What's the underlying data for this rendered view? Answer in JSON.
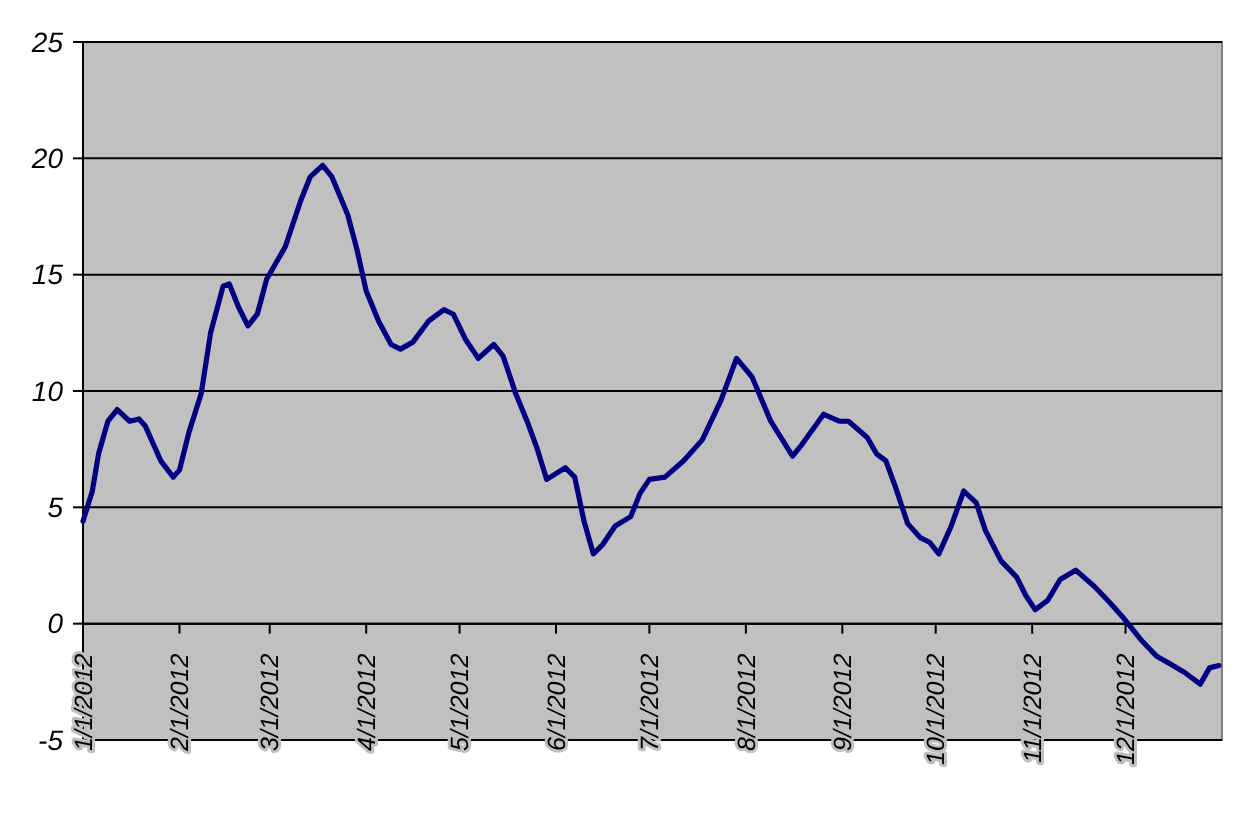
{
  "chart_data": {
    "type": "line",
    "grid": "y",
    "marker": "none",
    "line_style": "solid",
    "xlim": [
      "2012-01-01",
      "2013-01-01"
    ],
    "xticks": [
      {
        "value": "2012-01-01",
        "label": "1/1/2012"
      },
      {
        "value": "2012-02-01",
        "label": "2/1/2012"
      },
      {
        "value": "2012-03-01",
        "label": "3/1/2012"
      },
      {
        "value": "2012-04-01",
        "label": "4/1/2012"
      },
      {
        "value": "2012-05-01",
        "label": "5/1/2012"
      },
      {
        "value": "2012-06-01",
        "label": "6/1/2012"
      },
      {
        "value": "2012-07-01",
        "label": "7/1/2012"
      },
      {
        "value": "2012-08-01",
        "label": "8/1/2012"
      },
      {
        "value": "2012-09-01",
        "label": "9/1/2012"
      },
      {
        "value": "2012-10-01",
        "label": "10/1/2012"
      },
      {
        "value": "2012-11-01",
        "label": "11/1/2012"
      },
      {
        "value": "2012-12-01",
        "label": "12/1/2012"
      }
    ],
    "ylim": [
      -5,
      25
    ],
    "yticks": [
      -5,
      0,
      5,
      10,
      15,
      20,
      25
    ],
    "x": [
      "2012-01-01",
      "2012-01-04",
      "2012-01-06",
      "2012-01-09",
      "2012-01-12",
      "2012-01-16",
      "2012-01-19",
      "2012-01-21",
      "2012-01-26",
      "2012-01-30",
      "2012-02-01",
      "2012-02-04",
      "2012-02-08",
      "2012-02-11",
      "2012-02-15",
      "2012-02-17",
      "2012-02-20",
      "2012-02-23",
      "2012-02-26",
      "2012-02-29",
      "2012-03-03",
      "2012-03-06",
      "2012-03-11",
      "2012-03-14",
      "2012-03-18",
      "2012-03-21",
      "2012-03-26",
      "2012-03-29",
      "2012-04-01",
      "2012-04-05",
      "2012-04-09",
      "2012-04-12",
      "2012-04-16",
      "2012-04-21",
      "2012-04-26",
      "2012-04-29",
      "2012-05-03",
      "2012-05-07",
      "2012-05-12",
      "2012-05-15",
      "2012-05-19",
      "2012-05-23",
      "2012-05-26",
      "2012-05-29",
      "2012-06-04",
      "2012-06-07",
      "2012-06-10",
      "2012-06-13",
      "2012-06-16",
      "2012-06-20",
      "2012-06-25",
      "2012-06-28",
      "2012-07-01",
      "2012-07-06",
      "2012-07-12",
      "2012-07-18",
      "2012-07-24",
      "2012-07-29",
      "2012-08-03",
      "2012-08-09",
      "2012-08-16",
      "2012-08-19",
      "2012-08-26",
      "2012-08-31",
      "2012-09-03",
      "2012-09-09",
      "2012-09-12",
      "2012-09-15",
      "2012-09-18",
      "2012-09-22",
      "2012-09-26",
      "2012-09-29",
      "2012-10-02",
      "2012-10-06",
      "2012-10-10",
      "2012-10-14",
      "2012-10-17",
      "2012-10-22",
      "2012-10-27",
      "2012-10-30",
      "2012-11-02",
      "2012-11-06",
      "2012-11-10",
      "2012-11-15",
      "2012-11-21",
      "2012-11-26",
      "2012-11-30",
      "2012-12-06",
      "2012-12-11",
      "2012-12-15",
      "2012-12-20",
      "2012-12-25",
      "2012-12-28",
      "2012-12-31"
    ],
    "series": [
      {
        "color": "#000080",
        "values": [
          4.4,
          5.7,
          7.3,
          8.7,
          9.2,
          8.7,
          8.8,
          8.5,
          7.0,
          6.3,
          6.6,
          8.2,
          9.9,
          12.5,
          14.5,
          14.6,
          13.6,
          12.8,
          13.3,
          14.8,
          15.5,
          16.2,
          18.2,
          19.2,
          19.7,
          19.2,
          17.6,
          16.1,
          14.3,
          13.0,
          12.0,
          11.8,
          12.1,
          13.0,
          13.5,
          13.3,
          12.2,
          11.4,
          12.0,
          11.5,
          9.9,
          8.6,
          7.5,
          6.2,
          6.7,
          6.3,
          4.4,
          3.0,
          3.4,
          4.2,
          4.6,
          5.6,
          6.2,
          6.3,
          7.0,
          7.9,
          9.6,
          11.4,
          10.6,
          8.7,
          7.2,
          7.7,
          9.0,
          8.7,
          8.7,
          8.0,
          7.3,
          7.0,
          5.9,
          4.3,
          3.7,
          3.5,
          3.0,
          4.2,
          5.7,
          5.2,
          4.0,
          2.7,
          2.0,
          1.2,
          0.6,
          1.0,
          1.9,
          2.3,
          1.6,
          0.9,
          0.3,
          -0.7,
          -1.4,
          -1.7,
          -2.1,
          -2.6,
          -1.9,
          -1.8
        ]
      }
    ]
  }
}
